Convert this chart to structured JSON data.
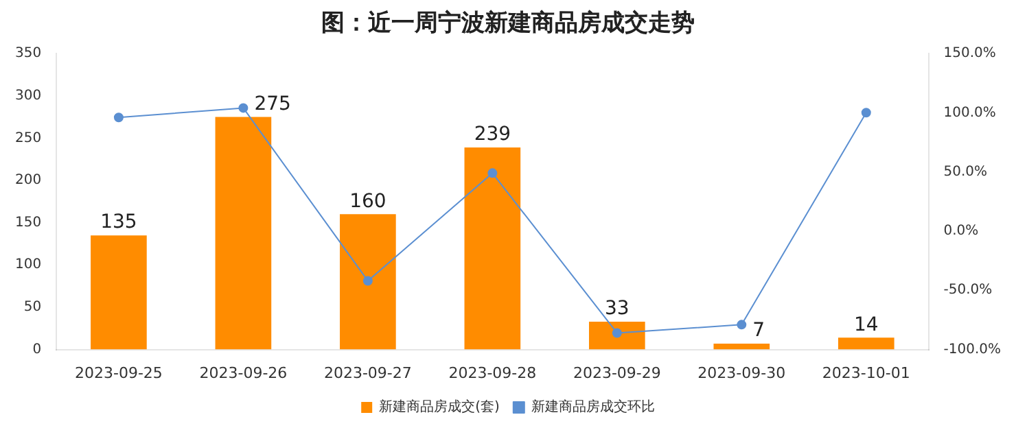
{
  "chart_data": {
    "type": "bar",
    "title": "图：近一周宁波新建商品房成交走势",
    "categories": [
      "2023-09-25",
      "2023-09-26",
      "2023-09-27",
      "2023-09-28",
      "2023-09-29",
      "2023-09-30",
      "2023-10-01"
    ],
    "series": [
      {
        "name": "新建商品房成交(套)",
        "color": "#ff8c00",
        "values": [
          135,
          275,
          160,
          239,
          33,
          7,
          14
        ],
        "value_labels": [
          "135",
          "275",
          "160",
          "239",
          "33",
          "7",
          "14"
        ]
      },
      {
        "name": "新建商品房成交环比",
        "type": "line",
        "axis": "y2",
        "color": "#5b8fd1",
        "marker": "circle",
        "values": [
          96,
          104,
          -42,
          49,
          -86,
          -79,
          100
        ]
      }
    ],
    "ylim": [
      0,
      350
    ],
    "yticks": [
      0,
      50,
      100,
      150,
      200,
      250,
      300,
      350
    ],
    "y2lim": [
      -100,
      150
    ],
    "y2ticks": [
      {
        "value": -100,
        "label": "-100.0%"
      },
      {
        "value": -50,
        "label": "-50.0%"
      },
      {
        "value": 0,
        "label": "0.0%"
      },
      {
        "value": 50,
        "label": "50.0%"
      },
      {
        "value": 100,
        "label": "100.0%"
      },
      {
        "value": 150,
        "label": "150.0%"
      }
    ],
    "grid": false,
    "legend": "bottom"
  }
}
